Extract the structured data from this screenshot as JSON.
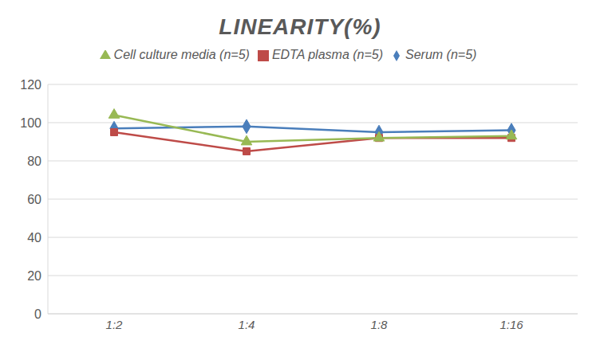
{
  "chart_data": {
    "type": "line",
    "title": "LINEARITY(%)",
    "categories": [
      "1:2",
      "1:4",
      "1:8",
      "1:16"
    ],
    "series": [
      {
        "name": "Serum (n=5)",
        "color": "#4a7ebb",
        "marker": "diamond",
        "values": [
          97,
          98,
          95,
          96
        ]
      },
      {
        "name": "EDTA plasma (n=5)",
        "color": "#be4b48",
        "marker": "square",
        "values": [
          95,
          85,
          92,
          92
        ]
      },
      {
        "name": "Cell culture media (n=5)",
        "color": "#98b954",
        "marker": "triangle",
        "values": [
          104,
          90,
          92,
          93
        ]
      }
    ],
    "ylim": [
      0,
      120
    ],
    "yticks": [
      0,
      20,
      40,
      60,
      80,
      100,
      120
    ],
    "grid": true,
    "legend": "top"
  }
}
